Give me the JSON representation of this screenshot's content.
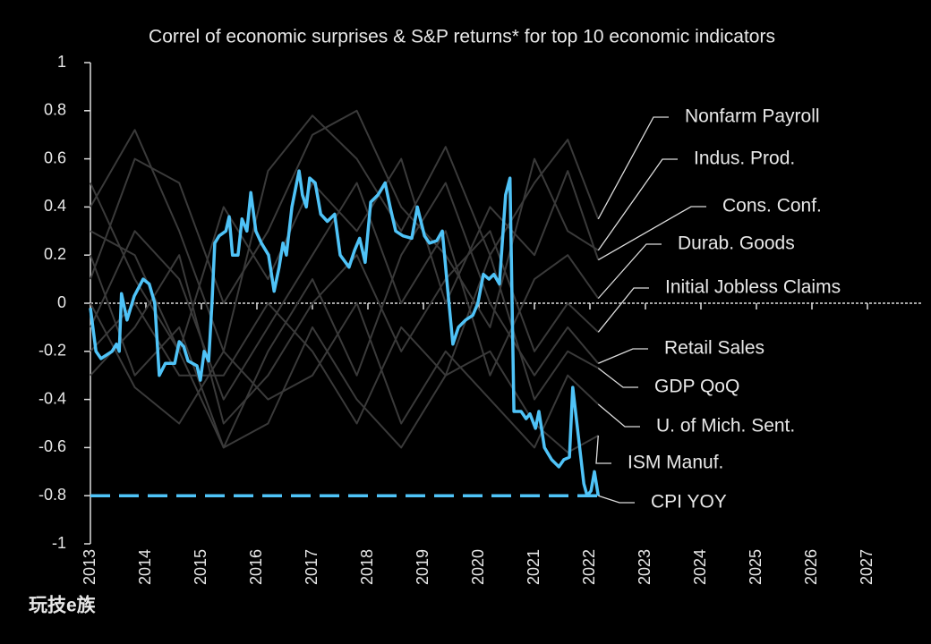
{
  "chart_data": {
    "type": "line",
    "title": "Correl of economic surprises & S&P returns* for top 10 economic indicators",
    "watermark": "玩技e族",
    "xlim": [
      2013,
      2028
    ],
    "xticks": [
      2013,
      2014,
      2015,
      2016,
      2017,
      2018,
      2019,
      2020,
      2021,
      2022,
      2023,
      2024,
      2025,
      2026,
      2027
    ],
    "ylim": [
      -1,
      1
    ],
    "yticks": [
      -1,
      -0.8,
      -0.6,
      -0.4,
      -0.2,
      0,
      0.2,
      0.4,
      0.6,
      0.8,
      1
    ],
    "reference_line": -0.8,
    "series": [
      {
        "name": "Nonfarm Payroll",
        "color": "#3a3a3a",
        "x": [
          2013,
          2013.8,
          2014.6,
          2015.4,
          2016.2,
          2017,
          2017.8,
          2018.6,
          2019.4,
          2020.2,
          2021,
          2021.6,
          2022.15
        ],
        "values": [
          0.4,
          0.72,
          0.3,
          -0.2,
          0.55,
          0.78,
          0.6,
          0.3,
          0.65,
          0.2,
          0.5,
          0.68,
          0.35
        ]
      },
      {
        "name": "Indus. Prod.",
        "color": "#3a3a3a",
        "x": [
          2013,
          2013.8,
          2014.6,
          2015.4,
          2016.2,
          2017,
          2017.8,
          2018.6,
          2019.4,
          2020.2,
          2021,
          2021.6,
          2022.15
        ],
        "values": [
          0.1,
          0.6,
          0.5,
          0.0,
          0.3,
          0.7,
          0.8,
          0.4,
          0.2,
          -0.1,
          0.6,
          0.3,
          0.22
        ]
      },
      {
        "name": "Cons. Conf.",
        "color": "#3a3a3a",
        "x": [
          2013,
          2013.8,
          2014.6,
          2015.4,
          2016.2,
          2017,
          2017.8,
          2018.6,
          2019.4,
          2020.2,
          2021,
          2021.6,
          2022.15
        ],
        "values": [
          0.3,
          0.2,
          -0.2,
          0.4,
          0.1,
          0.5,
          0.3,
          0.6,
          0.0,
          0.4,
          0.2,
          0.55,
          0.18
        ]
      },
      {
        "name": "Durab. Goods",
        "color": "#3a3a3a",
        "x": [
          2013,
          2013.8,
          2014.6,
          2015.4,
          2016.2,
          2017,
          2017.8,
          2018.6,
          2019.4,
          2020.2,
          2021,
          2021.6,
          2022.15
        ],
        "values": [
          -0.1,
          0.3,
          0.1,
          -0.4,
          -0.1,
          0.2,
          0.5,
          0.0,
          0.3,
          -0.3,
          0.1,
          0.2,
          0.02
        ]
      },
      {
        "name": "Initial Jobless Claims",
        "color": "#3a3a3a",
        "x": [
          2013,
          2013.8,
          2014.6,
          2015.4,
          2016.2,
          2017,
          2017.8,
          2018.6,
          2019.4,
          2020.2,
          2021,
          2021.6,
          2022.15
        ],
        "values": [
          -0.3,
          -0.1,
          0.2,
          -0.5,
          -0.3,
          0.0,
          0.2,
          -0.2,
          0.1,
          0.3,
          -0.2,
          0.0,
          -0.12
        ]
      },
      {
        "name": "Retail Sales",
        "color": "#3a3a3a",
        "x": [
          2013,
          2013.8,
          2014.6,
          2015.4,
          2016.2,
          2017,
          2017.8,
          2018.6,
          2019.4,
          2020.2,
          2021,
          2021.6,
          2022.15
        ],
        "values": [
          0.2,
          -0.3,
          -0.1,
          -0.6,
          -0.2,
          0.1,
          -0.3,
          0.2,
          0.5,
          0.0,
          -0.3,
          -0.1,
          -0.25
        ]
      },
      {
        "name": "GDP QoQ",
        "color": "#3a3a3a",
        "x": [
          2013,
          2013.8,
          2014.6,
          2015.4,
          2016.2,
          2017,
          2017.8,
          2018.6,
          2019.4,
          2020.2,
          2021,
          2021.6,
          2022.15
        ],
        "values": [
          -0.2,
          0.0,
          -0.3,
          -0.3,
          0.0,
          -0.2,
          -0.5,
          -0.1,
          -0.3,
          0.2,
          -0.4,
          -0.2,
          -0.27
        ]
      },
      {
        "name": "U. of Mich. Sent.",
        "color": "#3a3a3a",
        "x": [
          2013,
          2013.8,
          2014.6,
          2015.4,
          2016.2,
          2017,
          2017.8,
          2018.6,
          2019.4,
          2020.2,
          2021,
          2021.6,
          2022.15
        ],
        "values": [
          0.0,
          -0.35,
          -0.5,
          -0.2,
          -0.4,
          -0.3,
          0.0,
          -0.5,
          -0.2,
          -0.4,
          -0.6,
          -0.3,
          -0.42
        ]
      },
      {
        "name": "ISM Manuf.",
        "color": "#3a3a3a",
        "x": [
          2013,
          2013.8,
          2014.6,
          2015.4,
          2016.2,
          2017,
          2017.8,
          2018.6,
          2019.4,
          2020.2,
          2021,
          2021.6,
          2022.15
        ],
        "values": [
          0.5,
          0.1,
          -0.2,
          -0.6,
          -0.5,
          -0.1,
          -0.4,
          -0.6,
          -0.3,
          -0.2,
          -0.5,
          -0.62,
          -0.55
        ]
      },
      {
        "name": "CPI YOY",
        "color": "#4fc3f7",
        "x": [
          2013.0,
          2013.1,
          2013.19,
          2013.39,
          2013.47,
          2013.52,
          2013.56,
          2013.66,
          2013.79,
          2013.95,
          2014.06,
          2014.16,
          2014.24,
          2014.35,
          2014.52,
          2014.6,
          2014.68,
          2014.76,
          2014.92,
          2014.98,
          2015.05,
          2015.13,
          2015.19,
          2015.24,
          2015.32,
          2015.44,
          2015.5,
          2015.56,
          2015.66,
          2015.73,
          2015.82,
          2015.89,
          2015.98,
          2016.08,
          2016.21,
          2016.31,
          2016.4,
          2016.47,
          2016.53,
          2016.63,
          2016.69,
          2016.76,
          2016.82,
          2016.89,
          2016.95,
          2017.05,
          2017.15,
          2017.27,
          2017.4,
          2017.5,
          2017.66,
          2017.76,
          2017.85,
          2017.95,
          2018.05,
          2018.18,
          2018.31,
          2018.4,
          2018.5,
          2018.63,
          2018.79,
          2018.89,
          2019.02,
          2019.11,
          2019.24,
          2019.34,
          2019.44,
          2019.53,
          2019.63,
          2019.76,
          2019.89,
          2019.98,
          2020.08,
          2020.18,
          2020.27,
          2020.37,
          2020.48,
          2020.56,
          2020.63,
          2020.76,
          2020.85,
          2020.92,
          2021.02,
          2021.08,
          2021.18,
          2021.31,
          2021.44,
          2021.53,
          2021.63,
          2021.69,
          2021.79,
          2021.89,
          2021.95,
          2022.02,
          2022.08,
          2022.15
        ],
        "values": [
          -0.02,
          -0.2,
          -0.23,
          -0.2,
          -0.17,
          -0.2,
          0.04,
          -0.07,
          0.03,
          0.1,
          0.08,
          0.0,
          -0.3,
          -0.25,
          -0.25,
          -0.16,
          -0.18,
          -0.24,
          -0.26,
          -0.32,
          -0.2,
          -0.24,
          0.0,
          0.25,
          0.28,
          0.3,
          0.36,
          0.2,
          0.2,
          0.35,
          0.3,
          0.46,
          0.3,
          0.25,
          0.2,
          0.05,
          0.15,
          0.25,
          0.2,
          0.4,
          0.47,
          0.55,
          0.45,
          0.4,
          0.52,
          0.5,
          0.37,
          0.34,
          0.37,
          0.2,
          0.15,
          0.22,
          0.27,
          0.17,
          0.42,
          0.45,
          0.5,
          0.4,
          0.3,
          0.28,
          0.27,
          0.4,
          0.28,
          0.25,
          0.26,
          0.3,
          0.05,
          -0.17,
          -0.1,
          -0.07,
          -0.05,
          0.0,
          0.12,
          0.1,
          0.12,
          0.08,
          0.45,
          0.52,
          -0.45,
          -0.45,
          -0.48,
          -0.46,
          -0.52,
          -0.45,
          -0.6,
          -0.65,
          -0.68,
          -0.65,
          -0.64,
          -0.35,
          -0.55,
          -0.75,
          -0.8,
          -0.78,
          -0.7,
          -0.8
        ]
      }
    ]
  }
}
